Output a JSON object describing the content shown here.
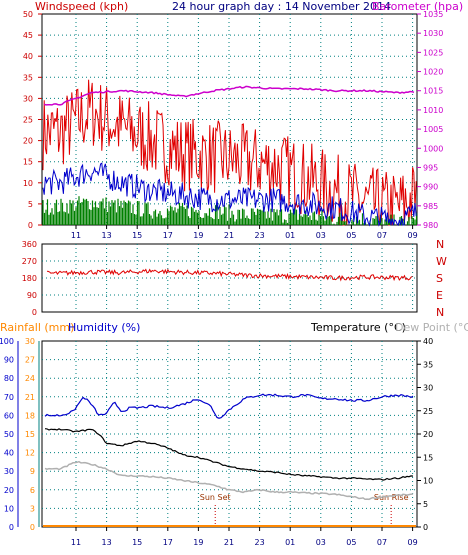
{
  "colors": {
    "windspeed": "#e00000",
    "windspeed_avg": "#0000cc",
    "wind_green": "#008000",
    "barometer": "#cc00cc",
    "wind_direction": "#e00000",
    "rainfall": "#ff8800",
    "humidity": "#0000cc",
    "temperature": "#000000",
    "dewpoint": "#b0b0b0",
    "axis_left_top": "#cc0000",
    "axis_right_top": "#cc00cc",
    "axis_time": "#000080",
    "axis_teal": "#008080",
    "axis_rain": "#ff8800",
    "grid": "#008080"
  },
  "chart_data": [
    {
      "type": "line",
      "title": "24 hour graph day : 14 November 2014",
      "left_label": "Windspeed (kph)",
      "right_label": "Barometer (hpa)",
      "x_ticks": [
        "11",
        "13",
        "15",
        "17",
        "19",
        "21",
        "23",
        "01",
        "03",
        "05",
        "07",
        "09"
      ],
      "y_left_ticks": [
        "0",
        "5",
        "10",
        "15",
        "20",
        "25",
        "30",
        "35",
        "40",
        "45",
        "50"
      ],
      "y_left_lim": [
        0,
        50
      ],
      "y_right_ticks": [
        "980",
        "985",
        "990",
        "995",
        "1000",
        "1005",
        "1010",
        "1015",
        "1020",
        "1025",
        "1030",
        "1035"
      ],
      "y_right_lim": [
        980,
        1035
      ],
      "grid": true,
      "series": [
        {
          "x_hours_from_start": [
            0,
            2,
            4,
            6,
            8,
            10,
            12,
            14,
            16,
            18,
            20,
            22,
            24
          ],
          "values": [
            22,
            27,
            23,
            20,
            17,
            16,
            15,
            14,
            11,
            8,
            5,
            4,
            9
          ]
        },
        {
          "x_hours_from_start": [
            0,
            2,
            4,
            6,
            8,
            10,
            12,
            14,
            16,
            18,
            20,
            22,
            24
          ],
          "values": [
            10,
            13,
            10,
            8,
            7,
            6,
            6,
            6,
            5,
            4,
            2,
            1,
            4
          ]
        },
        {
          "x_hours_from_start": [
            0,
            2,
            4,
            6,
            8,
            10,
            12,
            14,
            16,
            18,
            20,
            22,
            24
          ],
          "values": [
            4,
            5,
            4,
            3,
            3,
            3,
            2,
            2,
            2,
            1,
            1,
            0,
            1
          ]
        },
        {
          "x_hours_from_start": [
            0,
            2,
            4,
            6,
            8,
            10,
            12,
            14,
            16,
            18,
            20,
            22,
            24
          ],
          "values": [
            1011.5,
            1014.5,
            1015,
            1014.5,
            1013.5,
            1015,
            1016,
            1015.5,
            1015.5,
            1015,
            1015,
            1014.5,
            1015
          ]
        }
      ]
    },
    {
      "type": "line",
      "y_ticks": [
        "0",
        "90",
        "180",
        "270",
        "360"
      ],
      "ylim": [
        0,
        360
      ],
      "direction_labels": [
        "N",
        "W",
        "S",
        "E",
        "N"
      ],
      "series": [
        {
          "x_hours_from_start": [
            0,
            2,
            4,
            6,
            8,
            10,
            12,
            14,
            16,
            18,
            20,
            22,
            24
          ],
          "values": [
            205,
            212,
            208,
            218,
            210,
            205,
            195,
            190,
            185,
            180,
            185,
            182,
            180
          ]
        }
      ]
    },
    {
      "type": "line",
      "rain_label": "Rainfall (mm)",
      "humidity_label": "Humidity (%)",
      "temp_label": "Temperature (°C)",
      "dew_label": "Dew Point (°C)",
      "humidity_ticks": [
        "0",
        "10",
        "20",
        "30",
        "40",
        "50",
        "60",
        "70",
        "80",
        "90",
        "100"
      ],
      "humidity_lim": [
        0,
        100
      ],
      "rain_ticks": [
        "0",
        "3",
        "6",
        "9",
        "12",
        "15",
        "18",
        "21",
        "24",
        "27",
        "30"
      ],
      "rain_lim": [
        0,
        30
      ],
      "temp_ticks": [
        "0",
        "5",
        "10",
        "15",
        "20",
        "25",
        "30",
        "35",
        "40"
      ],
      "temp_lim": [
        0,
        40
      ],
      "x_ticks": [
        "11",
        "13",
        "15",
        "17",
        "19",
        "21",
        "23",
        "01",
        "03",
        "05",
        "07",
        "09"
      ],
      "annotations": [
        {
          "text": "Sun Set",
          "hour": 10.1
        },
        {
          "text": "Sun Rise",
          "hour": 21.6
        }
      ],
      "series": [
        {
          "x_hours_from_start": [
            0,
            0.8,
            1.5,
            2.0,
            2.5,
            3.0,
            3.5,
            4.0,
            4.5,
            5.0,
            6.0,
            7.0,
            8.0,
            9.0,
            9.8,
            10.3,
            11.0,
            12.0,
            13.0,
            14.0,
            15.0,
            16.0,
            17.0,
            18.0,
            19.0,
            20.0,
            21.0,
            22.0,
            23.0,
            23.5,
            24.0
          ],
          "values": [
            60,
            62,
            70,
            66,
            60,
            61,
            67,
            62,
            64,
            64,
            65,
            64,
            66,
            69,
            65,
            58,
            63,
            69,
            71,
            71,
            70,
            71,
            69,
            69,
            68,
            68,
            70,
            71,
            70,
            67,
            67
          ]
        },
        {
          "x_hours_from_start": [
            0,
            1,
            2,
            2.5,
            3,
            4,
            5,
            6,
            7,
            8,
            9,
            10,
            11,
            12,
            13,
            14,
            15,
            16,
            17,
            18,
            19,
            20,
            21,
            22,
            23,
            24
          ],
          "values": [
            21,
            20.5,
            21,
            20,
            18,
            17.5,
            18.5,
            18,
            17,
            15.5,
            15,
            14,
            13,
            12.5,
            12,
            11.8,
            11.3,
            11,
            10.8,
            10.5,
            10.5,
            10.3,
            10.2,
            10.5,
            11,
            12.5
          ]
        },
        {
          "x_hours_from_start": [
            0,
            1,
            2,
            3,
            4,
            5,
            6,
            7,
            8,
            9,
            10,
            11,
            12,
            13,
            14,
            15,
            16,
            17,
            18,
            19,
            20,
            21,
            22,
            23,
            24
          ],
          "values": [
            12.5,
            14,
            13.5,
            12.5,
            11,
            11,
            10.8,
            10.5,
            10,
            9.5,
            9,
            8,
            7.5,
            8,
            7.5,
            7.5,
            7.3,
            7.2,
            7,
            6.5,
            6,
            6.5,
            6.8,
            7,
            7.5
          ]
        },
        {
          "x_hours_from_start": [
            0,
            24
          ],
          "values": [
            0,
            0
          ]
        }
      ]
    }
  ]
}
